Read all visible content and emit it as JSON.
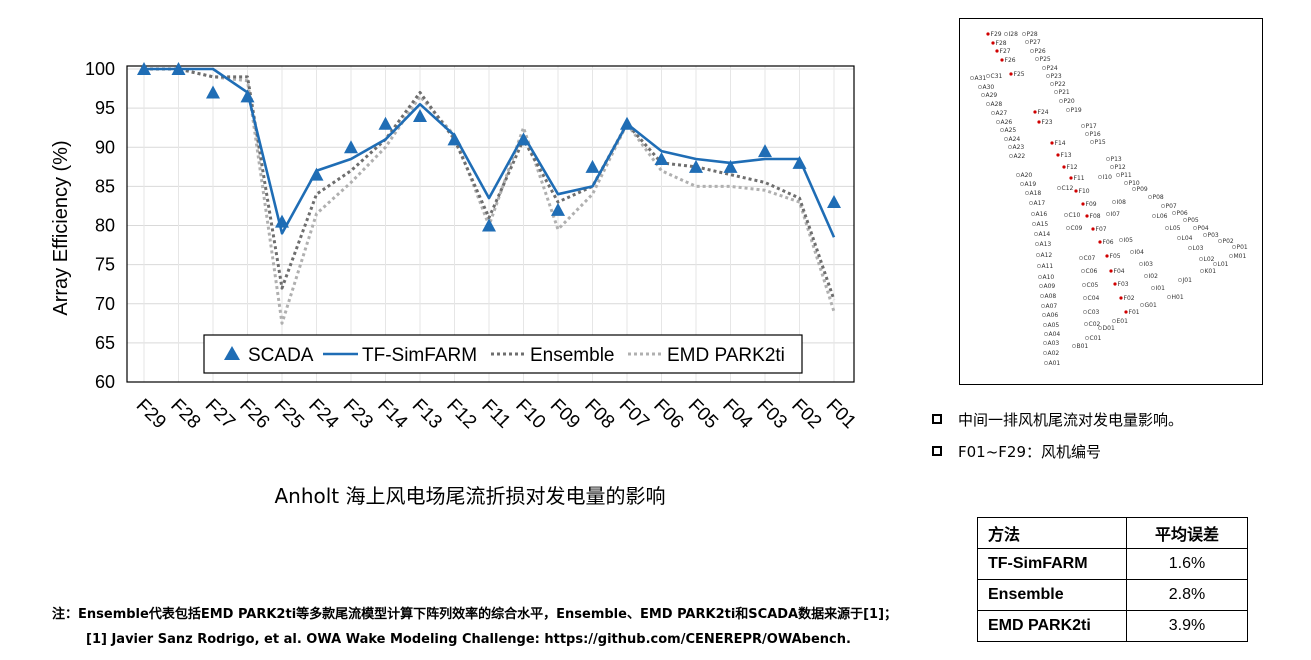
{
  "chart_data": {
    "type": "line",
    "ylabel": "Array Efficiency (%)",
    "ylim": [
      60,
      100
    ],
    "yticks": [
      "100",
      "95",
      "90",
      "85",
      "80",
      "75",
      "70",
      "65",
      "60"
    ],
    "categories": [
      "F29",
      "F28",
      "F27",
      "F26",
      "F25",
      "F24",
      "F23",
      "F14",
      "F13",
      "F12",
      "F11",
      "F10",
      "F09",
      "F08",
      "F07",
      "F06",
      "F05",
      "F04",
      "F03",
      "F02",
      "F01"
    ],
    "grid": true,
    "legend_position": "bottom-center",
    "series": [
      {
        "name": "SCADA",
        "style": "triangle-markers",
        "color": "#1f6db5",
        "values": [
          100,
          100,
          97,
          96.5,
          80.5,
          86.5,
          90,
          93,
          94,
          91,
          80,
          91,
          82,
          87.5,
          93,
          88.5,
          87.5,
          87.5,
          89.5,
          88,
          83
        ]
      },
      {
        "name": "TF-SimFARM",
        "style": "solid",
        "color": "#1f6db5",
        "values": [
          100,
          100,
          100,
          97,
          79,
          87,
          88.5,
          91,
          95.5,
          91.5,
          83.5,
          91.5,
          84,
          85,
          93,
          89.5,
          88.5,
          88,
          88.5,
          88.5,
          78.5
        ]
      },
      {
        "name": "Ensemble",
        "style": "dotted",
        "color": "#6e6e6e",
        "values": [
          100,
          100,
          99,
          99,
          72,
          84,
          87,
          91,
          97,
          91,
          81,
          91,
          83,
          85,
          93,
          88,
          87.5,
          86.5,
          85.5,
          83.5,
          70.5
        ]
      },
      {
        "name": "EMD PARK2ti",
        "style": "dotted",
        "color": "#b0b0b0",
        "values": [
          100,
          100,
          99,
          98.5,
          67.5,
          81.5,
          85.5,
          90,
          96.5,
          91.5,
          80,
          92.5,
          79.5,
          84,
          93,
          87,
          85,
          85,
          84.5,
          83,
          69
        ]
      }
    ]
  },
  "caption": "Anholt 海上风电场尾流折损对发电量的影响",
  "map": {
    "red_color": "#d00000",
    "turbines": [
      {
        "id": "F29",
        "red": true
      },
      {
        "id": "F28",
        "red": true
      },
      {
        "id": "F27",
        "red": true
      },
      {
        "id": "F26",
        "red": true
      },
      {
        "id": "F25",
        "red": true
      },
      {
        "id": "F24",
        "red": true
      },
      {
        "id": "F23",
        "red": true
      },
      {
        "id": "F14",
        "red": true
      },
      {
        "id": "F13",
        "red": true
      },
      {
        "id": "F12",
        "red": true
      },
      {
        "id": "F11",
        "red": true
      },
      {
        "id": "F10",
        "red": true
      },
      {
        "id": "F09",
        "red": true
      },
      {
        "id": "F08",
        "red": true
      },
      {
        "id": "F07",
        "red": true
      },
      {
        "id": "F06",
        "red": true
      },
      {
        "id": "F05",
        "red": true
      },
      {
        "id": "F04",
        "red": true
      },
      {
        "id": "F03",
        "red": true
      },
      {
        "id": "F02",
        "red": true
      },
      {
        "id": "F01",
        "red": true
      },
      {
        "id": "I28"
      },
      {
        "id": "P28"
      },
      {
        "id": "P27"
      },
      {
        "id": "P26"
      },
      {
        "id": "P25"
      },
      {
        "id": "P24"
      },
      {
        "id": "P23"
      },
      {
        "id": "P22"
      },
      {
        "id": "P21"
      },
      {
        "id": "P20"
      },
      {
        "id": "P19"
      },
      {
        "id": "P17"
      },
      {
        "id": "P16"
      },
      {
        "id": "P15"
      },
      {
        "id": "P13"
      },
      {
        "id": "P12"
      },
      {
        "id": "P11"
      },
      {
        "id": "P10"
      },
      {
        "id": "P09"
      },
      {
        "id": "P08"
      },
      {
        "id": "P07"
      },
      {
        "id": "P06"
      },
      {
        "id": "P05"
      },
      {
        "id": "P04"
      },
      {
        "id": "P03"
      },
      {
        "id": "P02"
      },
      {
        "id": "P01"
      },
      {
        "id": "A31"
      },
      {
        "id": "C31"
      },
      {
        "id": "A30"
      },
      {
        "id": "A29"
      },
      {
        "id": "A28"
      },
      {
        "id": "A27"
      },
      {
        "id": "A26"
      },
      {
        "id": "A25"
      },
      {
        "id": "A24"
      },
      {
        "id": "A23"
      },
      {
        "id": "A22"
      },
      {
        "id": "A20"
      },
      {
        "id": "A19"
      },
      {
        "id": "A18"
      },
      {
        "id": "A17"
      },
      {
        "id": "A16"
      },
      {
        "id": "A15"
      },
      {
        "id": "A14"
      },
      {
        "id": "A13"
      },
      {
        "id": "A12"
      },
      {
        "id": "A11"
      },
      {
        "id": "A10"
      },
      {
        "id": "A09"
      },
      {
        "id": "A08"
      },
      {
        "id": "A07"
      },
      {
        "id": "A06"
      },
      {
        "id": "A05"
      },
      {
        "id": "A04"
      },
      {
        "id": "A03"
      },
      {
        "id": "A02"
      },
      {
        "id": "A01"
      },
      {
        "id": "C12"
      },
      {
        "id": "I10"
      },
      {
        "id": "I08"
      },
      {
        "id": "C10"
      },
      {
        "id": "C09"
      },
      {
        "id": "I07"
      },
      {
        "id": "L06"
      },
      {
        "id": "L05"
      },
      {
        "id": "L04"
      },
      {
        "id": "I05"
      },
      {
        "id": "I04"
      },
      {
        "id": "L03"
      },
      {
        "id": "L02"
      },
      {
        "id": "L01"
      },
      {
        "id": "M01"
      },
      {
        "id": "K01"
      },
      {
        "id": "C07"
      },
      {
        "id": "C06"
      },
      {
        "id": "I03"
      },
      {
        "id": "I02"
      },
      {
        "id": "J01"
      },
      {
        "id": "C05"
      },
      {
        "id": "I01"
      },
      {
        "id": "C04"
      },
      {
        "id": "H01"
      },
      {
        "id": "G01"
      },
      {
        "id": "C03"
      },
      {
        "id": "E01"
      },
      {
        "id": "C02"
      },
      {
        "id": "D01"
      },
      {
        "id": "C01"
      },
      {
        "id": "B01"
      }
    ]
  },
  "bullets": [
    "中间一排风机尾流对发电量影响。",
    "F01~F29：风机编号"
  ],
  "table": {
    "headers": [
      "方法",
      "平均误差"
    ],
    "rows": [
      {
        "method": "TF-SimFARM",
        "error": "1.6%"
      },
      {
        "method": "Ensemble",
        "error": "2.8%"
      },
      {
        "method": "EMD PARK2ti",
        "error": "3.9%"
      }
    ]
  },
  "note": {
    "line1": "注：Ensemble代表包括EMD PARK2ti等多款尾流模型计算下阵列效率的综合水平，Ensemble、EMD PARK2ti和SCADA数据来源于[1]；",
    "line2": "[1] Javier Sanz Rodrigo, et al. OWA Wake Modeling Challenge: https://github.com/CENEREPR/OWAbench."
  }
}
